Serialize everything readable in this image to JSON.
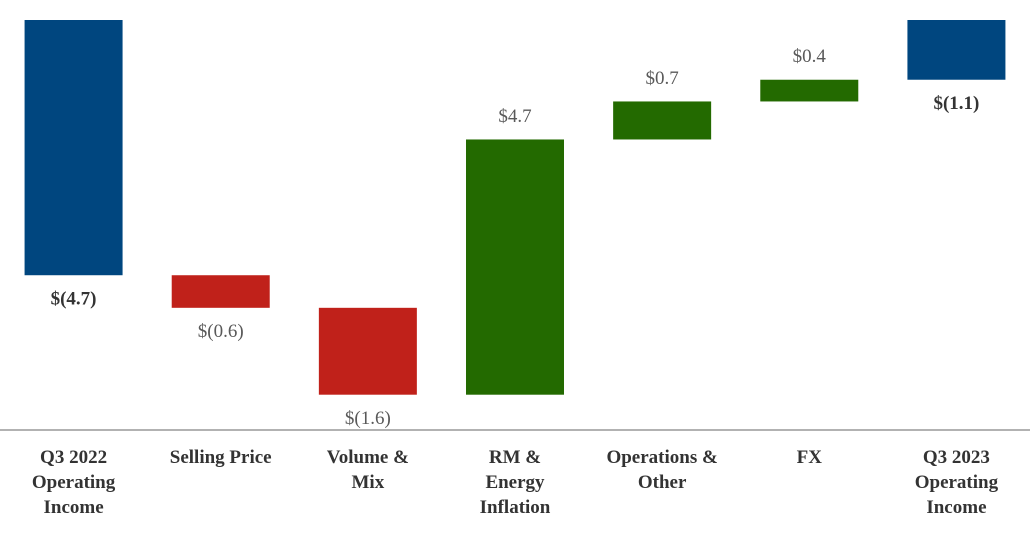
{
  "chart_data": {
    "type": "waterfall",
    "categories": [
      "Q3 2022 Operating Income",
      "Selling Price",
      "Volume & Mix",
      "RM & Energy Inflation",
      "Operations & Other",
      "FX",
      "Q3 2023 Operating Income"
    ],
    "values": [
      -4.7,
      -0.6,
      -1.6,
      4.7,
      0.7,
      0.4,
      -1.1
    ],
    "value_labels": [
      "$(4.7)",
      "$(0.6)",
      "$(1.6)",
      "$4.7",
      "$0.7",
      "$0.4",
      "$(1.1)"
    ],
    "totals": [
      true,
      false,
      false,
      false,
      false,
      false,
      true
    ],
    "colors": [
      "#00467f",
      "#c0211a",
      "#c0211a",
      "#236a00",
      "#236a00",
      "#236a00",
      "#00467f"
    ],
    "ylim": [
      -7.55,
      0
    ]
  }
}
